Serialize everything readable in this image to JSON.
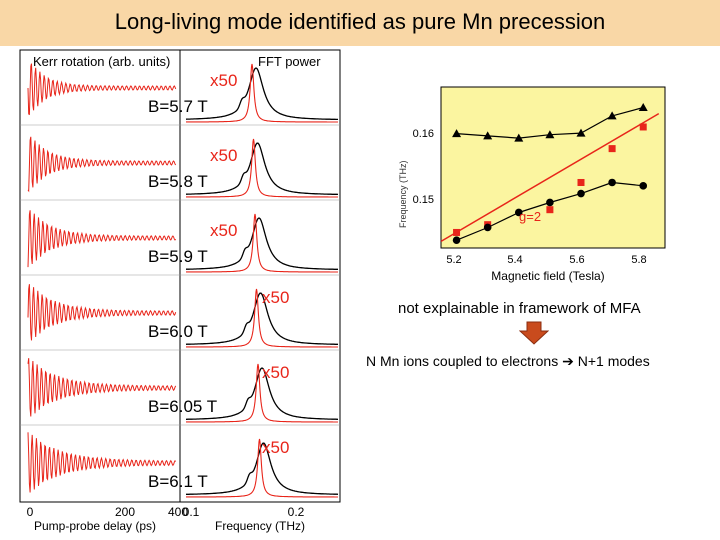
{
  "title": "Long-living mode identified as pure Mn precession",
  "colors": {
    "header_bg": "#f9d7a6",
    "red": "#e8251a",
    "black": "#000000",
    "plot_bg": "#fbf5a0",
    "arrow": "#c94b1d"
  },
  "left_figure": {
    "time_label": "Kerr rotation (arb. units)",
    "fft_label": "FFT power",
    "xlabel_time": "Pump-probe delay (ps)",
    "xlabel_freq": "Frequency (THz)",
    "time_ticks": [
      "0",
      "200",
      "400"
    ],
    "freq_ticks": [
      "0.1",
      "0.2"
    ],
    "panels": [
      {
        "field": "B=5.7 T",
        "scale": "x50"
      },
      {
        "field": "B=5.8 T",
        "scale": "x50"
      },
      {
        "field": "B=5.9 T",
        "scale": "x50"
      },
      {
        "field": "B=6.0 T",
        "scale": "x50"
      },
      {
        "field": "B=6.05 T",
        "scale": "x50"
      },
      {
        "field": "B=6.1 T",
        "scale": "x50"
      }
    ]
  },
  "chart_data": {
    "type": "scatter",
    "title": "",
    "xlabel": "Magnetic field (Tesla)",
    "ylabel": "Frequency (THz)",
    "xlim": [
      5.15,
      5.87
    ],
    "ylim": [
      0.143,
      0.172
    ],
    "xticks": [
      "5.2",
      "5.4",
      "5.6",
      "5.8"
    ],
    "yticks": [
      "0.15",
      "0.16"
    ],
    "annotation": "g=2",
    "series": [
      {
        "marker": "triangle",
        "color": "#000000",
        "x": [
          5.2,
          5.3,
          5.4,
          5.5,
          5.6,
          5.7,
          5.8
        ],
        "y": [
          0.1636,
          0.1632,
          0.1628,
          0.1634,
          0.1637,
          0.1668,
          0.1683
        ]
      },
      {
        "marker": "square",
        "color": "#e8251a",
        "x": [
          5.2,
          5.3,
          5.5,
          5.6,
          5.7,
          5.8
        ],
        "y": [
          0.1458,
          0.1472,
          0.1499,
          0.1548,
          0.1609,
          0.1648
        ]
      },
      {
        "marker": "circle",
        "color": "#000000",
        "x": [
          5.2,
          5.3,
          5.4,
          5.5,
          5.6,
          5.7,
          5.8
        ],
        "y": [
          0.1444,
          0.1467,
          0.1494,
          0.1512,
          0.1528,
          0.1548,
          0.1542
        ]
      }
    ],
    "lines": [
      {
        "name": "g=2",
        "color": "#e8251a",
        "x": [
          5.15,
          5.85
        ],
        "y": [
          0.1442,
          0.1672
        ]
      }
    ]
  },
  "notes": {
    "mfa": "not explainable in framework of MFA",
    "modes_prefix": "N Mn ions  coupled to electrons ",
    "modes_arrow": "➔",
    "modes_suffix": " N+1 modes"
  }
}
